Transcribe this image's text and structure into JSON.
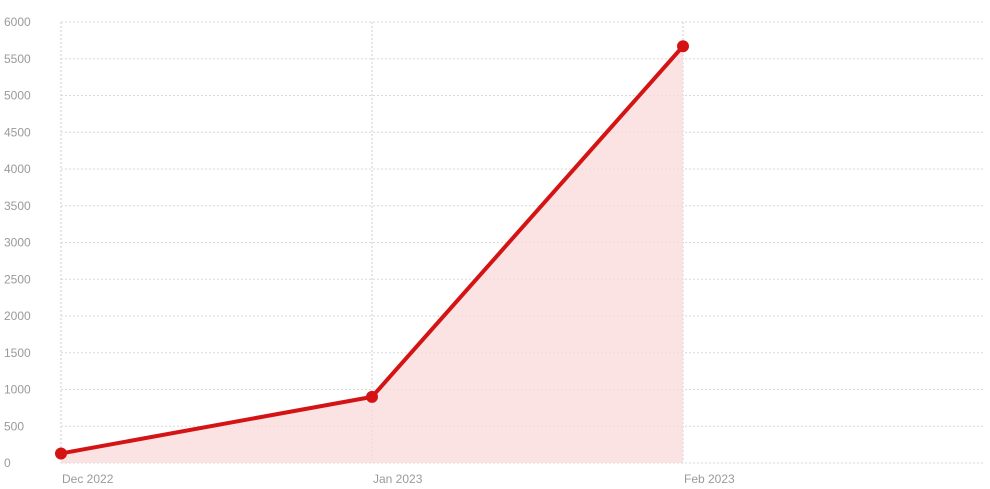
{
  "chart_data": {
    "type": "area",
    "x": [
      "Dec 2022",
      "Jan 2023",
      "Feb 2023"
    ],
    "series": [
      {
        "values": [
          130,
          900,
          5670
        ]
      }
    ],
    "ylim": [
      0,
      6000
    ],
    "y_ticks": [
      0,
      500,
      1000,
      1500,
      2000,
      2500,
      3000,
      3500,
      4000,
      4500,
      5000,
      5500,
      6000
    ],
    "x_tick_labels": [
      "Dec 2022",
      "Jan 2023",
      "Feb 2023"
    ],
    "grid": true,
    "legend": "none",
    "colors": {
      "line": "#d41414",
      "fill": "#f9dada",
      "marker": "#d41414"
    }
  }
}
